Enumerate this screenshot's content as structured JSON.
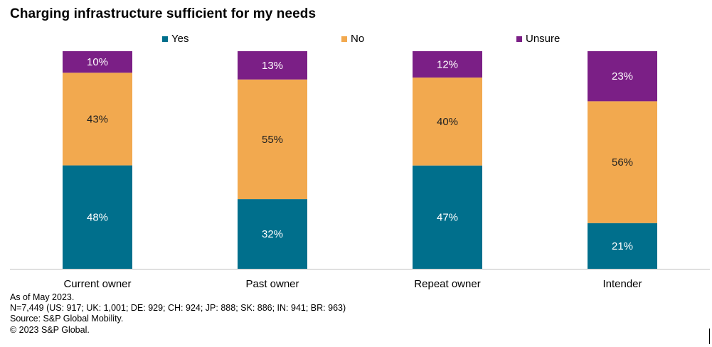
{
  "title": "Charging infrastructure  sufficient for my needs",
  "chart_data": {
    "type": "bar",
    "stacked": true,
    "percent_stacked": true,
    "title": "Charging infrastructure  sufficient for my needs",
    "categories": [
      "Current owner",
      "Past owner",
      "Repeat owner",
      "Intender"
    ],
    "series": [
      {
        "name": "Yes",
        "color": "#006f8c",
        "values": [
          48,
          32,
          47,
          21
        ],
        "labels": [
          "48%",
          "32%",
          "47%",
          "21%"
        ]
      },
      {
        "name": "No",
        "color": "#f2a94f",
        "values": [
          43,
          55,
          40,
          56
        ],
        "labels": [
          "43%",
          "55%",
          "40%",
          "56%"
        ]
      },
      {
        "name": "Unsure",
        "color": "#7b1f86",
        "values": [
          10,
          13,
          12,
          23
        ],
        "labels": [
          "10%",
          "13%",
          "12%",
          "23%"
        ]
      }
    ],
    "legend_position": "top",
    "ylim": [
      0,
      100
    ],
    "grid": false,
    "xlabel": "",
    "ylabel": ""
  },
  "footnotes": [
    "As of May 2023.",
    "N=7,449 (US: 917; UK: 1,001; DE: 929; CH: 924; JP: 888; SK: 886; IN: 941; BR: 963)",
    "Source: S&P Global Mobility.",
    "© 2023 S&P Global."
  ]
}
